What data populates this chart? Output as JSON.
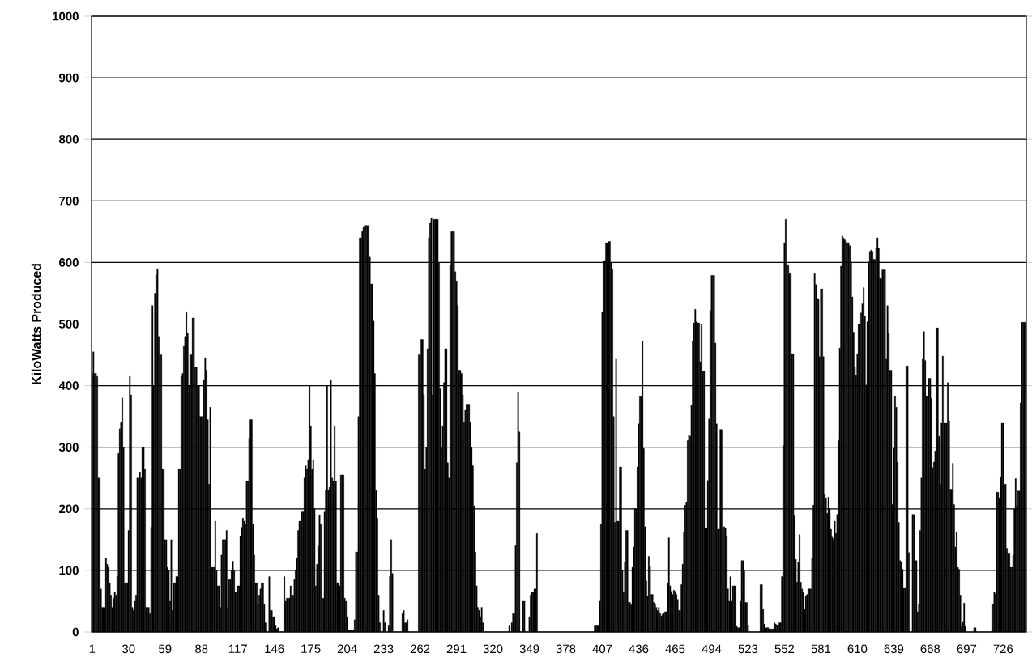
{
  "chart_data": {
    "type": "bar",
    "ylabel": "KiloWatts Produced",
    "color": "#000000",
    "ylim": [
      0,
      1000
    ],
    "yticks": [
      0,
      100,
      200,
      300,
      400,
      500,
      600,
      700,
      800,
      900,
      1000
    ],
    "grid": "y",
    "categories": [
      "1",
      null,
      null,
      null,
      null,
      null,
      null,
      null,
      null,
      null,
      null,
      null,
      null,
      null,
      null,
      null,
      null,
      null,
      null,
      null,
      null,
      null,
      null,
      null,
      null,
      null,
      null,
      null,
      null,
      "30",
      null,
      null,
      null,
      null,
      null,
      null,
      null,
      null,
      null,
      null,
      null,
      null,
      null,
      null,
      null,
      null,
      null,
      null,
      null,
      null,
      null,
      null,
      null,
      null,
      null,
      null,
      null,
      null,
      "59",
      null,
      null,
      null,
      null,
      null,
      null,
      null,
      null,
      null,
      null,
      null,
      null,
      null,
      null,
      null,
      null,
      null,
      null,
      null,
      null,
      null,
      null,
      null,
      null,
      null,
      null,
      null,
      null,
      "88",
      null,
      null,
      null,
      null,
      null,
      null,
      null,
      null,
      null,
      null,
      null,
      null,
      null,
      null,
      null,
      null,
      null,
      null,
      null,
      null,
      null,
      null,
      null,
      null,
      null,
      null,
      null,
      null,
      "117",
      null,
      null,
      null,
      null,
      null,
      null,
      null,
      null,
      null,
      null,
      null,
      null,
      null,
      null,
      null,
      null,
      null,
      null,
      null,
      null,
      null,
      null,
      null,
      null,
      null,
      null,
      null,
      null,
      "146",
      null,
      null,
      null,
      null,
      null,
      null,
      null,
      null,
      null,
      null,
      null,
      null,
      null,
      null,
      null,
      null,
      null,
      null,
      null,
      null,
      null,
      null,
      null,
      null,
      null,
      null,
      null,
      null,
      "175",
      null,
      null,
      null,
      null,
      null,
      null,
      null,
      null,
      null,
      null,
      null,
      null,
      null,
      null,
      null,
      null,
      null,
      null,
      null,
      null,
      null,
      null,
      null,
      null,
      null,
      null,
      null,
      null,
      "204",
      null,
      null,
      null,
      null,
      null,
      null,
      null,
      null,
      null,
      null,
      null,
      null,
      null,
      null,
      null,
      null,
      null,
      null,
      null,
      null,
      null,
      null,
      null,
      null,
      null,
      null,
      null,
      null,
      "233",
      null,
      null,
      null,
      null,
      null,
      null,
      null,
      null,
      null,
      null,
      null,
      null,
      null,
      null,
      null,
      null,
      null,
      null,
      null,
      null,
      null,
      null,
      null,
      null,
      null,
      null,
      null,
      null,
      "262",
      null,
      null,
      null,
      null,
      null,
      null,
      null,
      null,
      null,
      null,
      null,
      null,
      null,
      null,
      null,
      null,
      null,
      null,
      null,
      null,
      null,
      null,
      null,
      null,
      null,
      null,
      null,
      null,
      "291",
      null,
      null,
      null,
      null,
      null,
      null,
      null,
      null,
      null,
      null,
      null,
      null,
      null,
      null,
      null,
      null,
      null,
      null,
      null,
      null,
      null,
      null,
      null,
      null,
      null,
      null,
      null,
      null,
      "320",
      null,
      null,
      null,
      null,
      null,
      null,
      null,
      null,
      null,
      null,
      null,
      null,
      null,
      null,
      null,
      null,
      null,
      null,
      null,
      null,
      null,
      null,
      null,
      null,
      null,
      null,
      null,
      null,
      "349",
      null,
      null,
      null,
      null,
      null,
      null,
      null,
      null,
      null,
      null,
      null,
      null,
      null,
      null,
      null,
      null,
      null,
      null,
      null,
      null,
      null,
      null,
      null,
      null,
      null,
      null,
      null,
      null,
      "378",
      null,
      null,
      null,
      null,
      null,
      null,
      null,
      null,
      null,
      null,
      null,
      null,
      null,
      null,
      null,
      null,
      null,
      null,
      null,
      null,
      null,
      null,
      null,
      null,
      null,
      null,
      null,
      null,
      "407",
      null,
      null,
      null,
      null,
      null,
      null,
      null,
      null,
      null,
      null,
      null,
      null,
      null,
      null,
      null,
      null,
      null,
      null,
      null,
      null,
      null,
      null,
      null,
      null,
      null,
      null,
      null,
      null,
      "436",
      null,
      null,
      null,
      null,
      null,
      null,
      null,
      null,
      null,
      null,
      null,
      null,
      null,
      null,
      null,
      null,
      null,
      null,
      null,
      null,
      null,
      null,
      null,
      null,
      null,
      null,
      null,
      null,
      "465",
      null,
      null,
      null,
      null,
      null,
      null,
      null,
      null,
      null,
      null,
      null,
      null,
      null,
      null,
      null,
      null,
      null,
      null,
      null,
      null,
      null,
      null,
      null,
      null,
      null,
      null,
      null,
      null,
      "494",
      null,
      null,
      null,
      null,
      null,
      null,
      null,
      null,
      null,
      null,
      null,
      null,
      null,
      null,
      null,
      null,
      null,
      null,
      null,
      null,
      null,
      null,
      null,
      null,
      null,
      null,
      null,
      null,
      "523",
      null,
      null,
      null,
      null,
      null,
      null,
      null,
      null,
      null,
      null,
      null,
      null,
      null,
      null,
      null,
      null,
      null,
      null,
      null,
      null,
      null,
      null,
      null,
      null,
      null,
      null,
      null,
      null,
      "552",
      null,
      null,
      null,
      null,
      null,
      null,
      null,
      null,
      null,
      null,
      null,
      null,
      null,
      null,
      null,
      null,
      null,
      null,
      null,
      null,
      null,
      null,
      null,
      null,
      null,
      null,
      null,
      null,
      "581",
      null,
      null,
      null,
      null,
      null,
      null,
      null,
      null,
      null,
      null,
      null,
      null,
      null,
      null,
      null,
      null,
      null,
      null,
      null,
      null,
      null,
      null,
      null,
      null,
      null,
      null,
      null,
      null,
      "610",
      null,
      null,
      null,
      null,
      null,
      null,
      null,
      null,
      null,
      null,
      null,
      null,
      null,
      null,
      null,
      null,
      null,
      null,
      null,
      null,
      null,
      null,
      null,
      null,
      null,
      null,
      null,
      null,
      "639",
      null,
      null,
      null,
      null,
      null,
      null,
      null,
      null,
      null,
      null,
      null,
      null,
      null,
      null,
      null,
      null,
      null,
      null,
      null,
      null,
      null,
      null,
      null,
      null,
      null,
      null,
      null,
      null,
      "668",
      null,
      null,
      null,
      null,
      null,
      null,
      null,
      null,
      null,
      null,
      null,
      null,
      null,
      null,
      null,
      null,
      null,
      null,
      null,
      null,
      null,
      null,
      null,
      null,
      null,
      null,
      null,
      null,
      "697",
      null,
      null,
      null,
      null,
      null,
      null,
      null,
      null,
      null,
      null,
      null,
      null,
      null,
      null,
      null,
      null,
      null,
      null,
      null,
      null,
      null,
      null,
      null,
      null,
      null,
      null,
      null,
      null,
      "726",
      null,
      null,
      null,
      null,
      null,
      null,
      null,
      null,
      null,
      null,
      null,
      null,
      null,
      null,
      null,
      null,
      null,
      null
    ],
    "values": [
      420,
      455,
      420,
      420,
      415,
      250,
      250,
      70,
      40,
      40,
      40,
      120,
      110,
      105,
      80,
      60,
      40,
      55,
      65,
      60,
      90,
      290,
      330,
      340,
      380,
      300,
      80,
      80,
      80,
      165,
      415,
      385,
      40,
      35,
      50,
      60,
      250,
      250,
      260,
      250,
      300,
      300,
      265,
      40,
      40,
      40,
      30,
      170,
      530,
      400,
      550,
      580,
      590,
      480,
      450,
      450,
      265,
      265,
      150,
      150,
      105,
      100,
      50,
      150,
      35,
      80,
      80,
      90,
      90,
      265,
      265,
      415,
      420,
      465,
      480,
      520,
      485,
      400,
      450,
      450,
      510,
      510,
      430,
      430,
      400,
      400,
      350,
      350,
      350,
      410,
      445,
      425,
      345,
      240,
      365,
      105,
      105,
      105,
      180,
      100,
      75,
      75,
      40,
      125,
      150,
      150,
      150,
      165,
      40,
      85,
      85,
      100,
      115,
      100,
      65,
      65,
      75,
      75,
      155,
      170,
      185,
      180,
      175,
      245,
      245,
      315,
      345,
      345,
      175,
      125,
      80,
      80,
      45,
      60,
      70,
      80,
      80,
      45,
      15,
      0,
      0,
      90,
      35,
      35,
      25,
      25,
      10,
      5,
      7,
      0,
      0,
      0,
      0,
      90,
      50,
      55,
      55,
      55,
      75,
      60,
      60,
      85,
      100,
      120,
      165,
      180,
      180,
      195,
      195,
      250,
      270,
      265,
      280,
      400,
      335,
      265,
      280,
      200,
      75,
      110,
      140,
      190,
      175,
      55,
      55,
      195,
      230,
      400,
      230,
      235,
      410,
      250,
      245,
      335,
      245,
      80,
      80,
      75,
      255,
      255,
      255,
      55,
      50,
      25,
      3,
      3,
      3,
      3,
      3,
      20,
      130,
      130,
      350,
      640,
      640,
      650,
      658,
      660,
      660,
      660,
      660,
      610,
      565,
      565,
      505,
      420,
      230,
      185,
      60,
      15,
      0,
      0,
      35,
      15,
      0,
      0,
      10,
      90,
      150,
      95,
      0,
      0,
      0,
      0,
      0,
      0,
      0,
      30,
      35,
      15,
      15,
      20,
      0,
      0,
      0,
      0,
      0,
      0,
      0,
      0,
      450,
      450,
      475,
      475,
      385,
      265,
      300,
      460,
      640,
      665,
      672,
      385,
      670,
      670,
      670,
      670,
      600,
      395,
      300,
      335,
      405,
      460,
      460,
      275,
      250,
      595,
      650,
      650,
      650,
      585,
      570,
      530,
      425,
      425,
      420,
      385,
      340,
      360,
      370,
      370,
      370,
      340,
      300,
      270,
      205,
      130,
      75,
      40,
      35,
      25,
      40,
      15,
      0,
      0,
      0,
      0,
      0,
      0,
      0,
      0,
      0,
      0,
      0,
      0,
      0,
      0,
      0,
      0,
      0,
      0,
      0,
      0,
      10,
      0,
      15,
      30,
      30,
      140,
      275,
      390,
      325,
      0,
      0,
      50,
      50,
      0,
      0,
      0,
      25,
      60,
      65,
      65,
      70,
      70,
      160,
      0,
      0,
      0,
      0,
      0,
      0,
      0,
      0,
      0,
      0,
      0,
      0,
      0,
      0,
      0,
      0,
      0,
      0,
      0,
      0,
      0,
      0,
      0,
      0,
      0,
      0,
      0,
      0,
      0,
      0,
      0,
      0,
      0,
      0,
      0,
      0,
      0,
      0,
      0,
      0,
      0,
      0,
      0,
      0,
      0,
      10,
      10,
      10,
      10,
      50,
      175,
      520,
      603,
      603,
      632,
      632,
      634,
      634,
      600,
      590,
      350,
      178,
      443,
      180,
      180,
      268,
      268,
      100,
      64,
      114,
      165,
      165,
      48,
      48,
      44,
      105,
      138,
      200,
      200,
      268,
      338,
      382,
      382,
      472,
      298,
      171,
      83,
      59,
      123,
      107,
      61,
      61,
      48,
      46,
      40,
      35,
      40,
      31,
      26,
      29,
      31,
      33,
      33,
      79,
      153,
      75,
      66,
      61,
      68,
      66,
      61,
      53,
      35,
      35,
      77,
      110,
      162,
      206,
      211,
      311,
      320,
      318,
      368,
      472,
      502,
      524,
      504,
      502,
      502,
      439,
      500,
      423,
      423,
      169,
      169,
      246,
      346,
      522,
      579,
      579,
      579,
      469,
      338,
      167,
      167,
      329,
      329,
      167,
      171,
      169,
      156,
      70,
      50,
      90,
      50,
      75,
      75,
      75,
      9,
      7,
      7,
      50,
      116,
      116,
      99,
      48,
      48,
      11,
      0,
      0,
      0,
      0,
      0,
      0,
      0,
      0,
      0,
      77,
      77,
      37,
      13,
      7,
      7,
      7,
      5,
      5,
      5,
      5,
      15,
      13,
      11,
      11,
      15,
      15,
      90,
      303,
      632,
      670,
      597,
      595,
      583,
      583,
      452,
      452,
      189,
      118,
      81,
      114,
      158,
      81,
      70,
      64,
      37,
      59,
      61,
      70,
      70,
      70,
      121,
      206,
      583,
      564,
      542,
      540,
      447,
      557,
      557,
      447,
      224,
      217,
      193,
      219,
      200,
      167,
      154,
      151,
      180,
      160,
      191,
      311,
      461,
      594,
      643,
      640,
      638,
      634,
      632,
      632,
      627,
      601,
      544,
      487,
      430,
      417,
      452,
      500,
      500,
      518,
      533,
      559,
      513,
      401,
      504,
      601,
      618,
      620,
      618,
      605,
      605,
      623,
      640,
      623,
      575,
      573,
      588,
      588,
      588,
      443,
      530,
      485,
      425,
      425,
      207,
      298,
      383,
      365,
      276,
      178,
      116,
      114,
      102,
      71,
      71,
      432,
      432,
      129,
      0,
      0,
      191,
      191,
      116,
      116,
      33,
      45,
      165,
      250,
      443,
      488,
      441,
      383,
      383,
      412,
      412,
      379,
      267,
      276,
      294,
      494,
      494,
      318,
      240,
      339,
      448,
      339,
      339,
      339,
      405,
      343,
      232,
      232,
      274,
      207,
      138,
      163,
      105,
      102,
      60,
      9,
      16,
      47,
      9,
      0,
      0,
      0,
      0,
      0,
      0,
      7,
      7,
      0,
      0,
      0,
      0,
      0,
      0,
      0,
      0,
      0,
      0,
      0,
      0,
      0,
      45,
      65,
      62,
      227,
      227,
      218,
      252,
      339,
      339,
      240,
      240,
      136,
      127,
      127,
      105,
      105,
      125,
      200,
      249,
      205,
      229,
      229,
      372,
      503,
      503,
      503,
      503
    ]
  }
}
